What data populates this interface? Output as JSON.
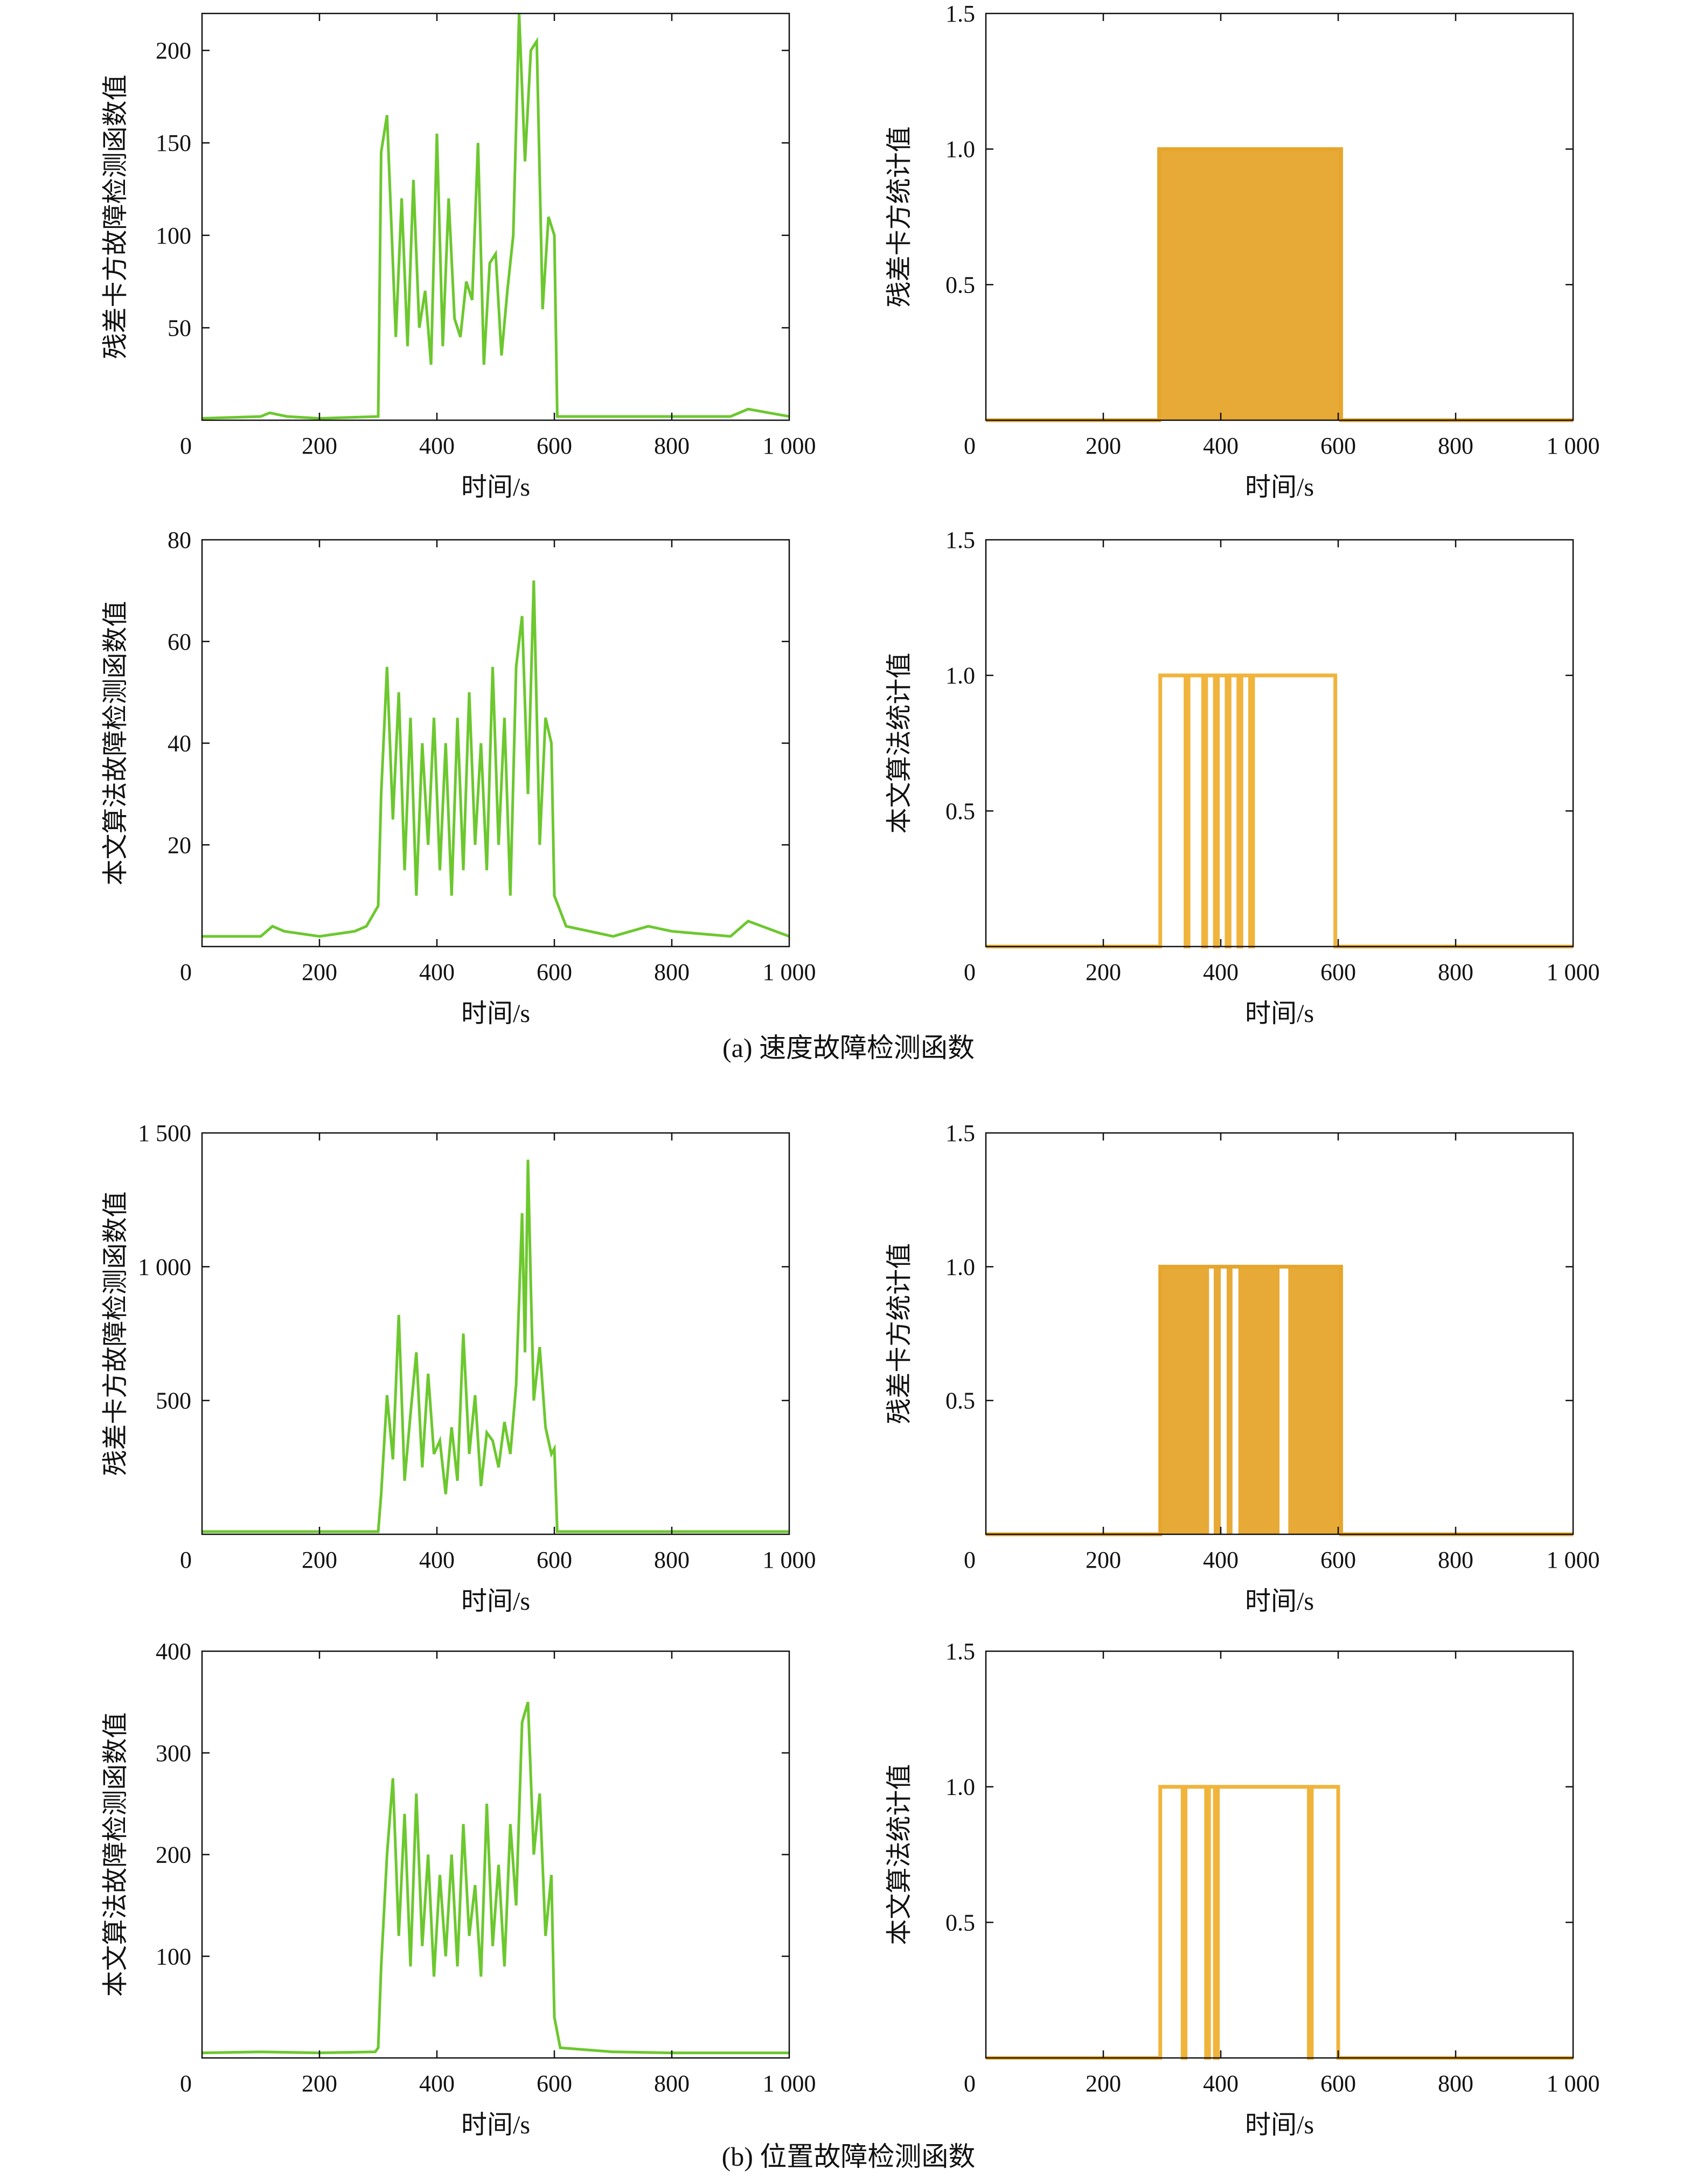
{
  "figure": {
    "captions": [
      "(a) 速度故障检测函数",
      "(b) 位置故障检测函数"
    ]
  },
  "chart_data": [
    {
      "id": "a-residual-fault",
      "type": "line",
      "group": "a",
      "ylabel": "残差卡方故障检测函数值",
      "xlabel": "时间/s",
      "xlim": [
        0,
        1000
      ],
      "ylim": [
        0,
        220
      ],
      "xticks": [
        0,
        200,
        400,
        600,
        800,
        1000
      ],
      "xtick_labels": [
        "0",
        "200",
        "400",
        "600",
        "800",
        "1 000"
      ],
      "yticks": [
        50,
        100,
        150,
        200
      ],
      "ytick_labels": [
        "50",
        "100",
        "150",
        "200"
      ],
      "color": "#6cc82e",
      "series": [
        {
          "name": "fault-detection",
          "x": [
            0,
            100,
            115,
            145,
            200,
            300,
            305,
            315,
            325,
            330,
            340,
            350,
            360,
            370,
            380,
            390,
            400,
            410,
            420,
            430,
            440,
            450,
            460,
            470,
            480,
            490,
            500,
            510,
            520,
            530,
            540,
            550,
            560,
            570,
            580,
            590,
            600,
            605,
            700,
            900,
            930,
            1000
          ],
          "y": [
            1,
            2,
            4,
            2,
            1,
            2,
            145,
            165,
            85,
            45,
            120,
            40,
            130,
            50,
            70,
            30,
            155,
            40,
            120,
            55,
            45,
            75,
            65,
            150,
            30,
            85,
            90,
            35,
            70,
            100,
            220,
            140,
            200,
            205,
            60,
            110,
            100,
            2,
            2,
            2,
            6,
            2
          ]
        }
      ]
    },
    {
      "id": "a-residual-stat",
      "type": "line",
      "group": "a",
      "ylabel": "残差卡方统计值",
      "xlabel": "时间/s",
      "xlim": [
        0,
        1000
      ],
      "ylim": [
        0,
        1.5
      ],
      "xticks": [
        0,
        200,
        400,
        600,
        800,
        1000
      ],
      "xtick_labels": [
        "0",
        "200",
        "400",
        "600",
        "800",
        "1 000"
      ],
      "yticks": [
        0.5,
        1.0,
        1.5
      ],
      "ytick_labels": [
        "0.5",
        "1.0",
        "1.5"
      ],
      "color": "#e6a52b",
      "fill_intervals": [
        [
          295,
          605
        ]
      ],
      "series": [
        {
          "name": "statistic",
          "x": [
            0,
            295,
            295,
            605,
            605,
            1000
          ],
          "y": [
            0,
            0,
            1,
            1,
            0,
            0
          ]
        }
      ]
    },
    {
      "id": "a-proposed-fault",
      "type": "line",
      "group": "a",
      "ylabel": "本文算法故障检测函数值",
      "xlabel": "时间/s",
      "xlim": [
        0,
        1000
      ],
      "ylim": [
        0,
        80
      ],
      "xticks": [
        0,
        200,
        400,
        600,
        800,
        1000
      ],
      "xtick_labels": [
        "0",
        "200",
        "400",
        "600",
        "800",
        "1 000"
      ],
      "yticks": [
        20,
        40,
        60,
        80
      ],
      "ytick_labels": [
        "20",
        "40",
        "60",
        "80"
      ],
      "color": "#6cc82e",
      "series": [
        {
          "name": "fault-detection",
          "x": [
            0,
            100,
            120,
            140,
            200,
            260,
            280,
            300,
            305,
            315,
            325,
            335,
            345,
            355,
            365,
            375,
            385,
            395,
            405,
            415,
            425,
            435,
            445,
            455,
            465,
            475,
            485,
            495,
            505,
            515,
            525,
            535,
            545,
            555,
            565,
            575,
            585,
            595,
            600,
            620,
            700,
            760,
            800,
            900,
            930,
            1000
          ],
          "y": [
            2,
            2,
            4,
            3,
            2,
            3,
            4,
            8,
            30,
            55,
            25,
            50,
            15,
            45,
            10,
            40,
            20,
            45,
            15,
            40,
            10,
            45,
            15,
            50,
            20,
            40,
            15,
            55,
            20,
            45,
            10,
            55,
            65,
            30,
            72,
            20,
            45,
            40,
            10,
            4,
            2,
            4,
            3,
            2,
            5,
            2
          ]
        }
      ]
    },
    {
      "id": "a-proposed-stat",
      "type": "line",
      "group": "a",
      "ylabel": "本文算法统计值",
      "xlabel": "时间/s",
      "xlim": [
        0,
        1000
      ],
      "ylim": [
        0,
        1.5
      ],
      "xticks": [
        0,
        200,
        400,
        600,
        800,
        1000
      ],
      "xtick_labels": [
        "0",
        "200",
        "400",
        "600",
        "800",
        "1 000"
      ],
      "yticks": [
        0.5,
        1.0,
        1.5
      ],
      "ytick_labels": [
        "0.5",
        "1.0",
        "1.5"
      ],
      "color": "#f0b43c",
      "series": [
        {
          "name": "statistic",
          "x": [
            0,
            297,
            297,
            340,
            340,
            345,
            345,
            370,
            370,
            375,
            375,
            390,
            390,
            395,
            395,
            410,
            410,
            415,
            415,
            430,
            430,
            435,
            435,
            450,
            450,
            455,
            455,
            595,
            595,
            1000
          ],
          "y": [
            0,
            0,
            1,
            1,
            0,
            0,
            1,
            1,
            0,
            0,
            1,
            1,
            0,
            0,
            1,
            1,
            0,
            0,
            1,
            1,
            0,
            0,
            1,
            1,
            0,
            0,
            1,
            1,
            0,
            0
          ]
        }
      ]
    },
    {
      "id": "b-residual-fault",
      "type": "line",
      "group": "b",
      "ylabel": "残差卡方故障检测函数值",
      "xlabel": "时间/s",
      "xlim": [
        0,
        1000
      ],
      "ylim": [
        0,
        1500
      ],
      "xticks": [
        0,
        200,
        400,
        600,
        800,
        1000
      ],
      "xtick_labels": [
        "0",
        "200",
        "400",
        "600",
        "800",
        "1 000"
      ],
      "yticks": [
        500,
        1000,
        1500
      ],
      "ytick_labels": [
        "500",
        "1 000",
        "1 500"
      ],
      "color": "#6cc82e",
      "series": [
        {
          "name": "fault-detection",
          "x": [
            0,
            300,
            305,
            315,
            325,
            335,
            345,
            355,
            365,
            375,
            385,
            395,
            405,
            415,
            425,
            435,
            445,
            455,
            465,
            475,
            485,
            495,
            505,
            515,
            525,
            535,
            545,
            550,
            555,
            560,
            565,
            575,
            585,
            595,
            600,
            605,
            1000
          ],
          "y": [
            10,
            10,
            150,
            520,
            280,
            820,
            200,
            450,
            680,
            250,
            600,
            300,
            350,
            150,
            400,
            200,
            750,
            300,
            520,
            180,
            380,
            350,
            250,
            420,
            300,
            560,
            1200,
            680,
            1400,
            920,
            500,
            700,
            400,
            300,
            320,
            10,
            10
          ]
        }
      ]
    },
    {
      "id": "b-residual-stat",
      "type": "line",
      "group": "b",
      "ylabel": "残差卡方统计值",
      "xlabel": "时间/s",
      "xlim": [
        0,
        1000
      ],
      "ylim": [
        0,
        1.5
      ],
      "xticks": [
        0,
        200,
        400,
        600,
        800,
        1000
      ],
      "xtick_labels": [
        "0",
        "200",
        "400",
        "600",
        "800",
        "1 000"
      ],
      "yticks": [
        0.5,
        1.0,
        1.5
      ],
      "ytick_labels": [
        "0.5",
        "1.0",
        "1.5"
      ],
      "color": "#e6a52b",
      "fill_intervals": [
        [
          297,
          380
        ],
        [
          388,
          400
        ],
        [
          410,
          420
        ],
        [
          430,
          500
        ],
        [
          515,
          605
        ]
      ],
      "series": [
        {
          "name": "statistic",
          "x": [
            0,
            297,
            297,
            605,
            605,
            1000
          ],
          "y": [
            0,
            0,
            1,
            1,
            0,
            0
          ]
        }
      ]
    },
    {
      "id": "b-proposed-fault",
      "type": "line",
      "group": "b",
      "ylabel": "本文算法故障检测函数值",
      "xlabel": "时间/s",
      "xlim": [
        0,
        1000
      ],
      "ylim": [
        0,
        400
      ],
      "xticks": [
        0,
        200,
        400,
        600,
        800,
        1000
      ],
      "xtick_labels": [
        "0",
        "200",
        "400",
        "600",
        "800",
        "1 000"
      ],
      "yticks": [
        100,
        200,
        300,
        400
      ],
      "ytick_labels": [
        "100",
        "200",
        "300",
        "400"
      ],
      "color": "#6cc82e",
      "series": [
        {
          "name": "fault-detection",
          "x": [
            0,
            100,
            200,
            295,
            300,
            305,
            315,
            325,
            335,
            345,
            355,
            365,
            375,
            385,
            395,
            405,
            415,
            425,
            435,
            445,
            455,
            465,
            475,
            485,
            495,
            505,
            515,
            525,
            535,
            545,
            555,
            565,
            575,
            585,
            595,
            600,
            610,
            700,
            800,
            1000
          ],
          "y": [
            5,
            6,
            5,
            6,
            10,
            90,
            200,
            275,
            120,
            240,
            90,
            260,
            110,
            200,
            80,
            180,
            100,
            200,
            90,
            230,
            120,
            170,
            80,
            250,
            110,
            190,
            90,
            230,
            150,
            330,
            350,
            200,
            260,
            120,
            180,
            40,
            10,
            6,
            5,
            5
          ]
        }
      ]
    },
    {
      "id": "b-proposed-stat",
      "type": "line",
      "group": "b",
      "ylabel": "本文算法统计值",
      "xlabel": "时间/s",
      "xlim": [
        0,
        1000
      ],
      "ylim": [
        0,
        1.5
      ],
      "xticks": [
        0,
        200,
        400,
        600,
        800,
        1000
      ],
      "xtick_labels": [
        "0",
        "200",
        "400",
        "600",
        "800",
        "1 000"
      ],
      "yticks": [
        0.5,
        1.0,
        1.5
      ],
      "ytick_labels": [
        "0.5",
        "1.0",
        "1.5"
      ],
      "color": "#f0b43c",
      "series": [
        {
          "name": "statistic",
          "x": [
            0,
            297,
            297,
            335,
            335,
            340,
            340,
            375,
            375,
            380,
            380,
            390,
            390,
            395,
            395,
            550,
            550,
            555,
            555,
            600,
            600,
            1000
          ],
          "y": [
            0,
            0,
            1,
            1,
            0,
            0,
            1,
            1,
            0,
            0,
            1,
            1,
            0,
            0,
            1,
            1,
            0,
            0,
            1,
            1,
            0,
            0
          ]
        }
      ]
    }
  ]
}
